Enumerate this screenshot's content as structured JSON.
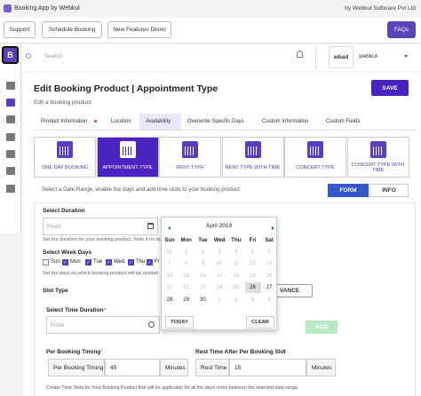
{
  "header": {
    "title": "Booking App by Webkul",
    "company": "by Webkul Software Pvt Ltd"
  },
  "toolbar": {
    "buttons": [
      "Support",
      "Schedule Booking",
      "New Features Demo"
    ],
    "faq": "FAQs"
  },
  "sidebar": {
    "logo": "B"
  },
  "topnav": {
    "search": "Search",
    "avatar": "wbad",
    "user": "webkul-"
  },
  "page": {
    "title": "Edit Booking Product | Appointment Type",
    "subtitle": "Edit a booking product",
    "save": "SAVE"
  },
  "tabs": [
    "Product Information",
    "Location",
    "Availability",
    "Overwrite Specific Days",
    "Custom Information",
    "Custom Fields"
  ],
  "types": [
    "ONE DAY BOOKING",
    "APPOINTMENT TYPE",
    "RENT TYPE",
    "RENT TYPE WITH TIME",
    "CONCERT TYPE",
    "CONCERT TYPE WITH TIME"
  ],
  "intro": {
    "text": "Select a Date Range, enable the days and add time-slots to your booking product.",
    "form": "FORM",
    "info": "INFO"
  },
  "form": {
    "required_mark": "*",
    "duration": {
      "label": "Select Duration",
      "placeholder": "From",
      "hint": "Set the duration for your booking product. Note if no durat"
    },
    "weekdays": {
      "label": "Select Week Days",
      "days": [
        {
          "name": "Sun",
          "checked": false
        },
        {
          "name": "Mon",
          "checked": true
        },
        {
          "name": "Tue",
          "checked": true
        },
        {
          "name": "Wed",
          "checked": true
        },
        {
          "name": "Thu",
          "checked": true
        },
        {
          "name": "Fr",
          "checked": true
        }
      ],
      "hint": "Set the days on which booking product will be availab"
    },
    "slot_type": {
      "label": "Slot Type",
      "advance": "VANCE"
    },
    "time_duration": {
      "label": "Select Time Duration",
      "placeholder": "From",
      "add": "ADD"
    },
    "per_booking": {
      "label": "Per Booking Timing",
      "field": "Per Booking Timing",
      "value": "45",
      "unit": "Minutes"
    },
    "rest": {
      "label": "Rest Time After Per Booking Slot",
      "field": "Rest Time",
      "value": "15",
      "unit": "Minutes"
    },
    "footer": "Create Time Slots for Your Booking Product that will be applicable for all the days come between the selected date-range."
  },
  "calendar": {
    "month": "April 2019",
    "weekdays": [
      "Sun",
      "Mon",
      "Tue",
      "Wed",
      "Thu",
      "Fri",
      "Sat"
    ],
    "weeks": [
      [
        "31",
        "1",
        "2",
        "3",
        "4",
        "5",
        "6"
      ],
      [
        "7",
        "8",
        "9",
        "10",
        "11",
        "12",
        "13"
      ],
      [
        "14",
        "15",
        "16",
        "17",
        "18",
        "19",
        "20"
      ],
      [
        "21",
        "22",
        "23",
        "24",
        "25",
        "26",
        "27"
      ],
      [
        "28",
        "29",
        "30",
        "1",
        "2",
        "3",
        "4"
      ]
    ],
    "today": "TODAY",
    "clear": "CLEAR"
  }
}
